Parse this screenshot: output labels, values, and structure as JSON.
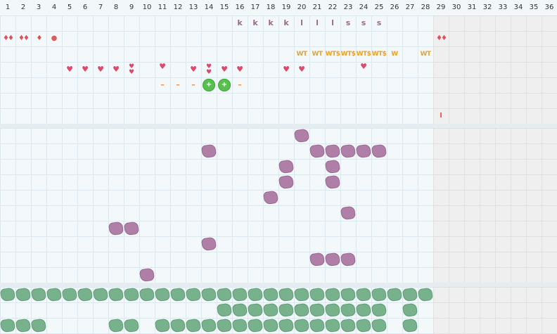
{
  "header": {
    "day_numbers": [
      "1",
      "2",
      "3",
      "4",
      "5",
      "6",
      "7",
      "8",
      "9",
      "10",
      "11",
      "12",
      "13",
      "14",
      "15",
      "16",
      "17",
      "18",
      "19",
      "20",
      "21",
      "22",
      "23",
      "24",
      "25",
      "26",
      "27",
      "28",
      "29",
      "30",
      "31",
      "32",
      "33",
      "34",
      "35",
      "36"
    ]
  },
  "colors": {
    "letter": "#9b6a8e",
    "wt": "#e9a22b",
    "heart": "#df4a6c",
    "drop": "#e0505a",
    "flower": "#57c04e",
    "purple_blob": "#b07fa8",
    "green_blob": "#78b28c",
    "inactive_background": "#efefef"
  },
  "active_days": 28,
  "panel1": {
    "markers": [
      {
        "col": 16,
        "row": 1,
        "kind": "letter",
        "text": "k"
      },
      {
        "col": 17,
        "row": 1,
        "kind": "letter",
        "text": "k"
      },
      {
        "col": 18,
        "row": 1,
        "kind": "letter",
        "text": "k"
      },
      {
        "col": 19,
        "row": 1,
        "kind": "letter",
        "text": "k"
      },
      {
        "col": 20,
        "row": 1,
        "kind": "letter",
        "text": "l"
      },
      {
        "col": 21,
        "row": 1,
        "kind": "letter",
        "text": "l"
      },
      {
        "col": 22,
        "row": 1,
        "kind": "letter",
        "text": "l"
      },
      {
        "col": 23,
        "row": 1,
        "kind": "letter",
        "text": "s"
      },
      {
        "col": 24,
        "row": 1,
        "kind": "letter",
        "text": "s"
      },
      {
        "col": 25,
        "row": 1,
        "kind": "letter",
        "text": "s"
      },
      {
        "col": 1,
        "row": 2,
        "kind": "drop",
        "text": "♦♦",
        "icon": "double-drop-icon"
      },
      {
        "col": 2,
        "row": 2,
        "kind": "drop",
        "text": "♦♦",
        "icon": "double-drop-icon"
      },
      {
        "col": 3,
        "row": 2,
        "kind": "drop",
        "text": "♦",
        "icon": "drop-icon"
      },
      {
        "col": 4,
        "row": 2,
        "kind": "dot",
        "text": "●",
        "icon": "dot-icon"
      },
      {
        "col": 29,
        "row": 2,
        "kind": "drop",
        "text": "♦♦",
        "icon": "double-drop-icon"
      },
      {
        "col": 20,
        "row": 3,
        "kind": "wt",
        "text": "WT"
      },
      {
        "col": 21,
        "row": 3,
        "kind": "wt",
        "text": "WT"
      },
      {
        "col": 22,
        "row": 3,
        "kind": "wt",
        "text": "WT$"
      },
      {
        "col": 23,
        "row": 3,
        "kind": "wt",
        "text": "WT$"
      },
      {
        "col": 24,
        "row": 3,
        "kind": "wt",
        "text": "WT$"
      },
      {
        "col": 25,
        "row": 3,
        "kind": "wt",
        "text": "WT$"
      },
      {
        "col": 26,
        "row": 3,
        "kind": "wt",
        "text": "W"
      },
      {
        "col": 28,
        "row": 3,
        "kind": "wt",
        "text": "WT"
      },
      {
        "col": 5,
        "row": 4,
        "kind": "heart",
        "text": "♥",
        "icon": "heart-icon"
      },
      {
        "col": 6,
        "row": 4,
        "kind": "heart",
        "text": "♥",
        "icon": "heart-icon"
      },
      {
        "col": 7,
        "row": 4,
        "kind": "heart",
        "text": "♥",
        "icon": "heart-icon"
      },
      {
        "col": 8,
        "row": 4,
        "kind": "heart",
        "text": "♥",
        "icon": "heart-icon"
      },
      {
        "col": 9,
        "row": 4,
        "kind": "dheart",
        "text": "♥♥",
        "icon": "double-heart-icon"
      },
      {
        "col": 11,
        "row": 4,
        "kind": "heart",
        "text": "♥",
        "icon": "heart-icon",
        "raised": true
      },
      {
        "col": 13,
        "row": 4,
        "kind": "heart",
        "text": "♥",
        "icon": "heart-icon"
      },
      {
        "col": 14,
        "row": 4,
        "kind": "dheart",
        "text": "♥♥",
        "icon": "double-heart-icon"
      },
      {
        "col": 15,
        "row": 4,
        "kind": "heart",
        "text": "♥",
        "icon": "heart-icon"
      },
      {
        "col": 16,
        "row": 4,
        "kind": "heart",
        "text": "♥",
        "icon": "heart-icon"
      },
      {
        "col": 19,
        "row": 4,
        "kind": "heart",
        "text": "♥",
        "icon": "heart-icon"
      },
      {
        "col": 20,
        "row": 4,
        "kind": "heart",
        "text": "♥",
        "icon": "heart-icon"
      },
      {
        "col": 24,
        "row": 4,
        "kind": "heart",
        "text": "♥",
        "icon": "heart-icon",
        "raised": true
      },
      {
        "col": 11,
        "row": 5,
        "kind": "dash",
        "text": "–",
        "icon": "dash-icon"
      },
      {
        "col": 12,
        "row": 5,
        "kind": "dash",
        "text": "–",
        "icon": "dash-icon"
      },
      {
        "col": 13,
        "row": 5,
        "kind": "dash",
        "text": "–",
        "icon": "dash-icon"
      },
      {
        "col": 14,
        "row": 5,
        "kind": "flower",
        "text": "+",
        "icon": "flower-icon"
      },
      {
        "col": 15,
        "row": 5,
        "kind": "flower",
        "text": "+",
        "icon": "flower-icon"
      },
      {
        "col": 16,
        "row": 5,
        "kind": "dash",
        "text": "–",
        "icon": "dash-icon"
      },
      {
        "col": 29,
        "row": 7,
        "kind": "bar",
        "text": "I",
        "icon": "bar-icon"
      }
    ]
  },
  "panel2": {
    "blobs": [
      {
        "col": 20,
        "row": 1
      },
      {
        "col": 14,
        "row": 2
      },
      {
        "col": 21,
        "row": 2
      },
      {
        "col": 22,
        "row": 2
      },
      {
        "col": 23,
        "row": 2
      },
      {
        "col": 24,
        "row": 2
      },
      {
        "col": 25,
        "row": 2
      },
      {
        "col": 19,
        "row": 3
      },
      {
        "col": 22,
        "row": 3
      },
      {
        "col": 19,
        "row": 4
      },
      {
        "col": 22,
        "row": 4
      },
      {
        "col": 18,
        "row": 5
      },
      {
        "col": 23,
        "row": 6
      },
      {
        "col": 8,
        "row": 7
      },
      {
        "col": 9,
        "row": 7
      },
      {
        "col": 14,
        "row": 8
      },
      {
        "col": 21,
        "row": 9
      },
      {
        "col": 22,
        "row": 9
      },
      {
        "col": 23,
        "row": 9
      },
      {
        "col": 10,
        "row": 10
      }
    ]
  },
  "panel3": {
    "blobs": [
      {
        "col": 1,
        "row": 1
      },
      {
        "col": 2,
        "row": 1
      },
      {
        "col": 3,
        "row": 1
      },
      {
        "col": 4,
        "row": 1
      },
      {
        "col": 5,
        "row": 1
      },
      {
        "col": 6,
        "row": 1
      },
      {
        "col": 7,
        "row": 1
      },
      {
        "col": 8,
        "row": 1
      },
      {
        "col": 9,
        "row": 1
      },
      {
        "col": 10,
        "row": 1
      },
      {
        "col": 11,
        "row": 1
      },
      {
        "col": 12,
        "row": 1
      },
      {
        "col": 13,
        "row": 1
      },
      {
        "col": 14,
        "row": 1
      },
      {
        "col": 15,
        "row": 1
      },
      {
        "col": 16,
        "row": 1
      },
      {
        "col": 17,
        "row": 1
      },
      {
        "col": 18,
        "row": 1
      },
      {
        "col": 19,
        "row": 1
      },
      {
        "col": 20,
        "row": 1
      },
      {
        "col": 21,
        "row": 1
      },
      {
        "col": 22,
        "row": 1
      },
      {
        "col": 23,
        "row": 1
      },
      {
        "col": 24,
        "row": 1
      },
      {
        "col": 25,
        "row": 1
      },
      {
        "col": 26,
        "row": 1
      },
      {
        "col": 27,
        "row": 1
      },
      {
        "col": 28,
        "row": 1
      },
      {
        "col": 15,
        "row": 2
      },
      {
        "col": 16,
        "row": 2
      },
      {
        "col": 17,
        "row": 2
      },
      {
        "col": 18,
        "row": 2
      },
      {
        "col": 19,
        "row": 2
      },
      {
        "col": 20,
        "row": 2
      },
      {
        "col": 21,
        "row": 2
      },
      {
        "col": 22,
        "row": 2
      },
      {
        "col": 23,
        "row": 2
      },
      {
        "col": 24,
        "row": 2
      },
      {
        "col": 25,
        "row": 2
      },
      {
        "col": 27,
        "row": 2
      },
      {
        "col": 1,
        "row": 3
      },
      {
        "col": 2,
        "row": 3
      },
      {
        "col": 3,
        "row": 3
      },
      {
        "col": 8,
        "row": 3
      },
      {
        "col": 9,
        "row": 3
      },
      {
        "col": 11,
        "row": 3
      },
      {
        "col": 12,
        "row": 3
      },
      {
        "col": 13,
        "row": 3
      },
      {
        "col": 14,
        "row": 3
      },
      {
        "col": 15,
        "row": 3
      },
      {
        "col": 16,
        "row": 3
      },
      {
        "col": 17,
        "row": 3
      },
      {
        "col": 18,
        "row": 3
      },
      {
        "col": 19,
        "row": 3
      },
      {
        "col": 20,
        "row": 3
      },
      {
        "col": 21,
        "row": 3
      },
      {
        "col": 22,
        "row": 3
      },
      {
        "col": 23,
        "row": 3
      },
      {
        "col": 24,
        "row": 3
      },
      {
        "col": 25,
        "row": 3
      },
      {
        "col": 27,
        "row": 3
      }
    ]
  }
}
